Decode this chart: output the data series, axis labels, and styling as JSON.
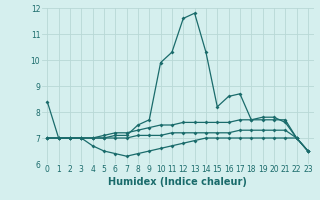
{
  "title": "",
  "xlabel": "Humidex (Indice chaleur)",
  "ylabel": "",
  "bg_color": "#d5efee",
  "line_color": "#1a6b6b",
  "grid_color": "#b8d8d6",
  "xlim": [
    -0.5,
    23.5
  ],
  "ylim": [
    6,
    12
  ],
  "yticks": [
    6,
    7,
    8,
    9,
    10,
    11,
    12
  ],
  "xticks": [
    0,
    1,
    2,
    3,
    4,
    5,
    6,
    7,
    8,
    9,
    10,
    11,
    12,
    13,
    14,
    15,
    16,
    17,
    18,
    19,
    20,
    21,
    22,
    23
  ],
  "series": [
    [
      8.4,
      7.0,
      7.0,
      7.0,
      7.0,
      7.0,
      7.1,
      7.1,
      7.5,
      7.7,
      9.9,
      10.3,
      11.6,
      11.8,
      10.3,
      8.2,
      8.6,
      8.7,
      7.7,
      7.8,
      7.8,
      7.6,
      7.0,
      6.5
    ],
    [
      7.0,
      7.0,
      7.0,
      7.0,
      7.0,
      7.1,
      7.2,
      7.2,
      7.3,
      7.4,
      7.5,
      7.5,
      7.6,
      7.6,
      7.6,
      7.6,
      7.6,
      7.7,
      7.7,
      7.7,
      7.7,
      7.7,
      7.0,
      6.5
    ],
    [
      7.0,
      7.0,
      7.0,
      7.0,
      7.0,
      7.0,
      7.0,
      7.0,
      7.1,
      7.1,
      7.1,
      7.2,
      7.2,
      7.2,
      7.2,
      7.2,
      7.2,
      7.3,
      7.3,
      7.3,
      7.3,
      7.3,
      7.0,
      6.5
    ],
    [
      7.0,
      7.0,
      7.0,
      7.0,
      6.7,
      6.5,
      6.4,
      6.3,
      6.4,
      6.5,
      6.6,
      6.7,
      6.8,
      6.9,
      7.0,
      7.0,
      7.0,
      7.0,
      7.0,
      7.0,
      7.0,
      7.0,
      7.0,
      6.5
    ]
  ],
  "tick_fontsize": 5.5,
  "xlabel_fontsize": 7,
  "xlabel_fontweight": "bold"
}
